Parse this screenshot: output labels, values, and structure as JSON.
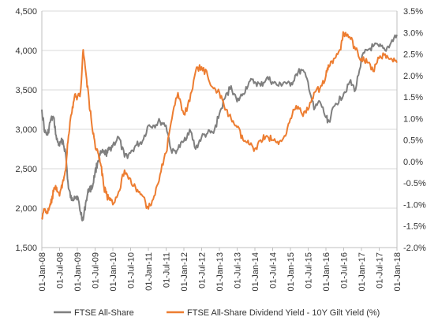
{
  "chart_data": {
    "type": "line",
    "legend_position": "bottom",
    "grid": "horizontal",
    "x_ticks": [
      "01-Jan-08",
      "01-Jul-08",
      "01-Jan-09",
      "01-Jul-09",
      "01-Jan-10",
      "01-Jul-10",
      "01-Jan-11",
      "01-Jul-11",
      "01-Jan-12",
      "01-Jul-12",
      "01-Jan-13",
      "01-Jul-13",
      "01-Jan-14",
      "01-Jul-14",
      "01-Jan-15",
      "01-Jul-15",
      "01-Jan-16",
      "01-Jul-16",
      "01-Jan-17",
      "01-Jul-17",
      "01-Jan-18"
    ],
    "xlim": [
      "2008-01-01",
      "2018-01-01"
    ],
    "y_left": {
      "range": [
        1500,
        4500
      ],
      "ticks": [
        "1,500",
        "2,000",
        "2,500",
        "3,000",
        "3,500",
        "4,000",
        "4,500"
      ]
    },
    "y_right": {
      "range": [
        -2.0,
        3.5
      ],
      "ticks": [
        "-2.0%",
        "-1.5%",
        "-1.0%",
        "-0.5%",
        "0.0%",
        "0.5%",
        "1.0%",
        "1.5%",
        "2.0%",
        "2.5%",
        "3.0%",
        "3.5%"
      ]
    },
    "series": [
      {
        "name": "FTSE All-Share",
        "axis": "left",
        "color": "#7f7f7f",
        "x": [
          "2008-01-01",
          "2008-02-01",
          "2008-03-01",
          "2008-04-01",
          "2008-05-01",
          "2008-06-01",
          "2008-07-01",
          "2008-08-01",
          "2008-09-01",
          "2008-10-01",
          "2008-11-01",
          "2008-12-01",
          "2009-01-01",
          "2009-02-01",
          "2009-03-01",
          "2009-04-01",
          "2009-05-01",
          "2009-06-01",
          "2009-07-01",
          "2009-08-01",
          "2009-09-01",
          "2009-10-01",
          "2009-11-01",
          "2009-12-01",
          "2010-01-01",
          "2010-03-01",
          "2010-05-01",
          "2010-07-01",
          "2010-09-01",
          "2010-11-01",
          "2011-01-01",
          "2011-03-01",
          "2011-05-01",
          "2011-07-01",
          "2011-09-01",
          "2011-11-01",
          "2012-01-01",
          "2012-03-01",
          "2012-05-01",
          "2012-07-01",
          "2012-09-01",
          "2012-11-01",
          "2013-01-01",
          "2013-03-01",
          "2013-05-01",
          "2013-07-01",
          "2013-09-01",
          "2013-11-01",
          "2014-01-01",
          "2014-03-01",
          "2014-05-01",
          "2014-07-01",
          "2014-09-01",
          "2014-11-01",
          "2015-01-01",
          "2015-03-01",
          "2015-05-01",
          "2015-07-01",
          "2015-09-01",
          "2015-11-01",
          "2016-01-01",
          "2016-02-01",
          "2016-04-01",
          "2016-06-01",
          "2016-07-01",
          "2016-09-01",
          "2016-11-01",
          "2017-01-01",
          "2017-03-01",
          "2017-05-01",
          "2017-07-01",
          "2017-09-01",
          "2017-11-01",
          "2018-01-01"
        ],
        "values": [
          3250,
          2960,
          2930,
          3120,
          3150,
          2870,
          2790,
          2870,
          2700,
          2250,
          2100,
          2150,
          2150,
          1950,
          1850,
          2100,
          2250,
          2250,
          2450,
          2600,
          2700,
          2700,
          2700,
          2750,
          2800,
          2900,
          2650,
          2700,
          2800,
          2850,
          3050,
          3050,
          3100,
          3050,
          2700,
          2750,
          2850,
          3000,
          2750,
          2900,
          2950,
          2950,
          3200,
          3400,
          3550,
          3350,
          3450,
          3600,
          3600,
          3550,
          3650,
          3600,
          3550,
          3600,
          3550,
          3700,
          3750,
          3600,
          3250,
          3350,
          3150,
          3100,
          3300,
          3400,
          3450,
          3600,
          3500,
          3900,
          4000,
          4050,
          4050,
          4000,
          4100,
          4200
        ]
      },
      {
        "name": "FTSE All-Share Dividend Yield - 10Y Gilt Yield (%)",
        "axis": "right",
        "color": "#ed7d31",
        "x": [
          "2008-01-01",
          "2008-02-01",
          "2008-03-01",
          "2008-04-01",
          "2008-05-01",
          "2008-06-01",
          "2008-07-01",
          "2008-08-01",
          "2008-09-01",
          "2008-10-01",
          "2008-11-01",
          "2008-12-01",
          "2009-01-01",
          "2009-02-01",
          "2009-03-01",
          "2009-04-01",
          "2009-05-01",
          "2009-06-01",
          "2009-07-01",
          "2009-08-01",
          "2009-09-01",
          "2009-10-01",
          "2009-11-01",
          "2009-12-01",
          "2010-01-01",
          "2010-03-01",
          "2010-05-01",
          "2010-07-01",
          "2010-09-01",
          "2010-11-01",
          "2011-01-01",
          "2011-03-01",
          "2011-05-01",
          "2011-07-01",
          "2011-09-01",
          "2011-11-01",
          "2012-01-01",
          "2012-03-01",
          "2012-05-01",
          "2012-07-01",
          "2012-09-01",
          "2012-11-01",
          "2013-01-01",
          "2013-03-01",
          "2013-05-01",
          "2013-07-01",
          "2013-09-01",
          "2013-11-01",
          "2014-01-01",
          "2014-03-01",
          "2014-05-01",
          "2014-07-01",
          "2014-09-01",
          "2014-11-01",
          "2015-01-01",
          "2015-03-01",
          "2015-05-01",
          "2015-07-01",
          "2015-09-01",
          "2015-11-01",
          "2016-01-01",
          "2016-02-01",
          "2016-04-01",
          "2016-06-01",
          "2016-07-01",
          "2016-09-01",
          "2016-11-01",
          "2017-01-01",
          "2017-03-01",
          "2017-05-01",
          "2017-07-01",
          "2017-09-01",
          "2017-11-01",
          "2018-01-01"
        ],
        "values": [
          -1.3,
          -1.1,
          -1.2,
          -1.0,
          -0.7,
          -0.6,
          -0.8,
          -0.5,
          -0.2,
          0.6,
          1.1,
          1.5,
          1.5,
          1.6,
          2.6,
          2.0,
          1.4,
          0.8,
          0.4,
          0.2,
          -0.1,
          -0.6,
          -0.8,
          -0.9,
          -1.0,
          -0.7,
          -0.2,
          -0.4,
          -0.7,
          -0.8,
          -1.1,
          -0.8,
          -0.3,
          0.2,
          1.0,
          1.6,
          1.1,
          1.4,
          2.1,
          2.2,
          2.0,
          1.7,
          1.6,
          1.2,
          1.0,
          0.8,
          0.5,
          0.4,
          0.3,
          0.5,
          0.6,
          0.5,
          0.4,
          0.6,
          1.0,
          1.3,
          1.1,
          1.2,
          1.6,
          1.7,
          2.0,
          2.2,
          2.4,
          2.6,
          3.0,
          2.9,
          2.6,
          2.4,
          2.3,
          2.1,
          2.4,
          2.5,
          2.4,
          2.3
        ]
      }
    ]
  }
}
